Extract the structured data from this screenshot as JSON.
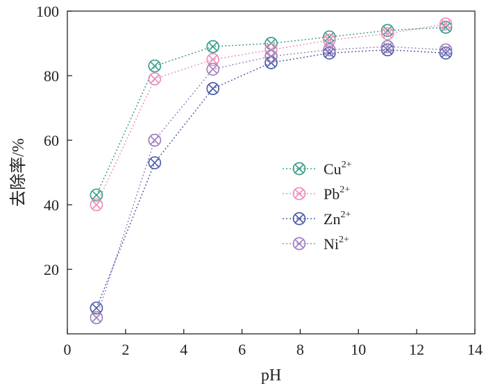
{
  "chart_data": {
    "type": "line",
    "xlabel": "pH",
    "ylabel": "去除率/%",
    "xlim": [
      0,
      14
    ],
    "ylim": [
      0,
      100
    ],
    "xticks": [
      0,
      2,
      4,
      6,
      8,
      10,
      12,
      14
    ],
    "yticks": [
      20,
      40,
      60,
      80,
      100
    ],
    "grid": false,
    "legend_position": "center-right",
    "marker": "circle-x",
    "line_style": "dotted",
    "x": [
      1,
      3,
      5,
      7,
      9,
      11,
      13
    ],
    "series": [
      {
        "name": "Cu",
        "superscript": "2+",
        "color": "#3a9e8c",
        "values": [
          43,
          83,
          89,
          90,
          92,
          94,
          95
        ]
      },
      {
        "name": "Pb",
        "superscript": "2+",
        "color": "#ec8fbd",
        "values": [
          40,
          79,
          85,
          88,
          91,
          93,
          96
        ]
      },
      {
        "name": "Zn",
        "superscript": "2+",
        "color": "#4a5fa8",
        "values": [
          8,
          53,
          76,
          84,
          87,
          88,
          87
        ]
      },
      {
        "name": "Ni",
        "superscript": "2+",
        "color": "#a080bd",
        "values": [
          5,
          60,
          82,
          86,
          88,
          89,
          88
        ]
      }
    ]
  }
}
